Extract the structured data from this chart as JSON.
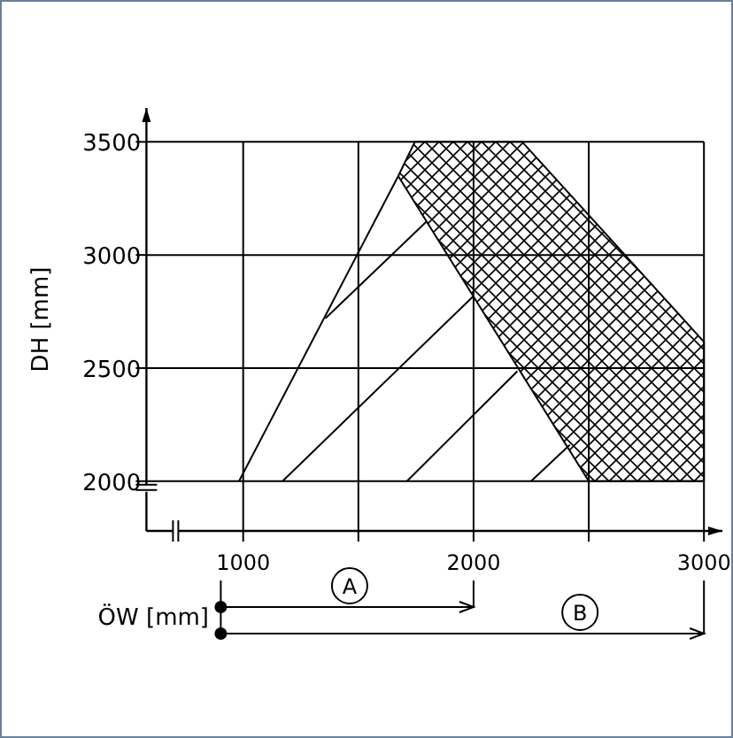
{
  "chart_data": {
    "type": "line",
    "xlabel": "ÖW [mm]",
    "ylabel": "DH [mm]",
    "xlim": [
      580,
      3080
    ],
    "ylim": [
      1780,
      3650
    ],
    "xticks": [
      1000,
      {
        "value": 1500,
        "label": null
      },
      2000,
      {
        "value": 2500,
        "label": null
      },
      3000
    ],
    "yticks": [
      2000,
      2500,
      3000,
      3500
    ],
    "grid": true,
    "series": [
      {
        "color": "#000000",
        "x": [
          982,
          1673,
          1745,
          2211,
          3000,
          3000,
          2500,
          1673
        ],
        "values": [
          2000,
          3349,
          3500,
          3500,
          2616,
          2000,
          2000,
          3349
        ]
      },
      {
        "color": "#000000",
        "x": [
          1171,
          2000
        ],
        "values": [
          2000,
          2819
        ]
      },
      {
        "color": "#000000",
        "x": [
          1711,
          2190
        ],
        "values": [
          2000,
          2486
        ]
      },
      {
        "color": "#000000",
        "x": [
          2250,
          2418
        ],
        "values": [
          2000,
          2161
        ]
      },
      {
        "color": "#000000",
        "x": [
          1357,
          1797
        ],
        "values": [
          2720,
          3149
        ]
      }
    ],
    "annotations": [
      "A",
      "B"
    ]
  }
}
